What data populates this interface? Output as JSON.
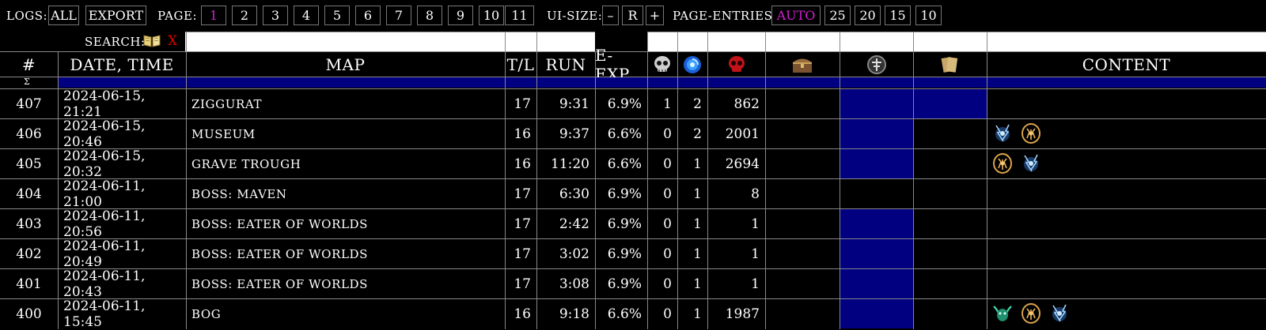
{
  "toolbar": {
    "logs_label": "LOGS:",
    "all": "ALL",
    "export": "EXPORT",
    "page_label": "PAGE:",
    "pages": [
      "1",
      "2",
      "3",
      "4",
      "5",
      "6",
      "7",
      "8",
      "9",
      "10",
      "11"
    ],
    "active_page": "1",
    "ui_size_label": "UI-SIZE:",
    "ui_minus": "–",
    "ui_reset": "R",
    "ui_plus": "+",
    "page_entries_label": "PAGE-ENTRIES:",
    "entries": [
      "AUTO",
      "25",
      "20",
      "15",
      "10"
    ],
    "active_entries": "AUTO"
  },
  "search": {
    "label": "SEARCH:",
    "clear": "X",
    "value": ""
  },
  "table": {
    "headers": {
      "num": "#",
      "date": "DATE, TIME",
      "map": "MAP",
      "tl": "T/L",
      "run": "RUN",
      "eexp": "E-EXP",
      "deaths_icon": "skull-icon",
      "portals_icon": "portal-icon",
      "kills_icon": "red-skull-icon",
      "loot_icon": "chest-icon",
      "sanctum_icon": "sanctum-icon",
      "scrolls_icon": "scroll-icon",
      "content": "CONTENT"
    },
    "sum_symbol": "Σ",
    "rows": [
      {
        "num": "407",
        "date": "2024-06-15, 21:21",
        "map": "ZIGGURAT",
        "tl": "17",
        "run": "9:31",
        "eexp": "6.9%",
        "deaths": "1",
        "portals": "2",
        "kills": "862",
        "hl_sanctum": true,
        "hl_scrolls": true,
        "content": []
      },
      {
        "num": "406",
        "date": "2024-06-15, 20:46",
        "map": "MUSEUM",
        "tl": "16",
        "run": "9:37",
        "eexp": "6.6%",
        "deaths": "0",
        "portals": "2",
        "kills": "2001",
        "hl_sanctum": true,
        "hl_scrolls": false,
        "content": [
          "lightning-spirit-icon",
          "gold-mask-icon"
        ]
      },
      {
        "num": "405",
        "date": "2024-06-15, 20:32",
        "map": "GRAVE TROUGH",
        "tl": "16",
        "run": "11:20",
        "eexp": "6.6%",
        "deaths": "0",
        "portals": "1",
        "kills": "2694",
        "hl_sanctum": true,
        "hl_scrolls": false,
        "content": [
          "gold-mask-icon",
          "lightning-spirit-icon"
        ]
      },
      {
        "num": "404",
        "date": "2024-06-11, 21:00",
        "map": "BOSS: MAVEN",
        "tl": "17",
        "run": "6:30",
        "eexp": "6.9%",
        "deaths": "0",
        "portals": "1",
        "kills": "8",
        "hl_sanctum": false,
        "hl_scrolls": false,
        "content": []
      },
      {
        "num": "403",
        "date": "2024-06-11, 20:56",
        "map": "BOSS: EATER OF WORLDS",
        "tl": "17",
        "run": "2:42",
        "eexp": "6.9%",
        "deaths": "0",
        "portals": "1",
        "kills": "1",
        "hl_sanctum": true,
        "hl_scrolls": false,
        "content": []
      },
      {
        "num": "402",
        "date": "2024-06-11, 20:49",
        "map": "BOSS: EATER OF WORLDS",
        "tl": "17",
        "run": "3:02",
        "eexp": "6.9%",
        "deaths": "0",
        "portals": "1",
        "kills": "1",
        "hl_sanctum": true,
        "hl_scrolls": false,
        "content": []
      },
      {
        "num": "401",
        "date": "2024-06-11, 20:43",
        "map": "BOSS: EATER OF WORLDS",
        "tl": "17",
        "run": "3:08",
        "eexp": "6.9%",
        "deaths": "0",
        "portals": "1",
        "kills": "1",
        "hl_sanctum": true,
        "hl_scrolls": false,
        "content": []
      },
      {
        "num": "400",
        "date": "2024-06-11, 15:45",
        "map": "BOG",
        "tl": "16",
        "run": "9:18",
        "eexp": "6.6%",
        "deaths": "0",
        "portals": "1",
        "kills": "1987",
        "hl_sanctum": true,
        "hl_scrolls": false,
        "content": [
          "green-demon-icon",
          "gold-mask-icon",
          "lightning-spirit-icon"
        ]
      }
    ]
  },
  "colors": {
    "highlight": "#000080",
    "active": "#d020d0",
    "clear": "#e00000"
  }
}
